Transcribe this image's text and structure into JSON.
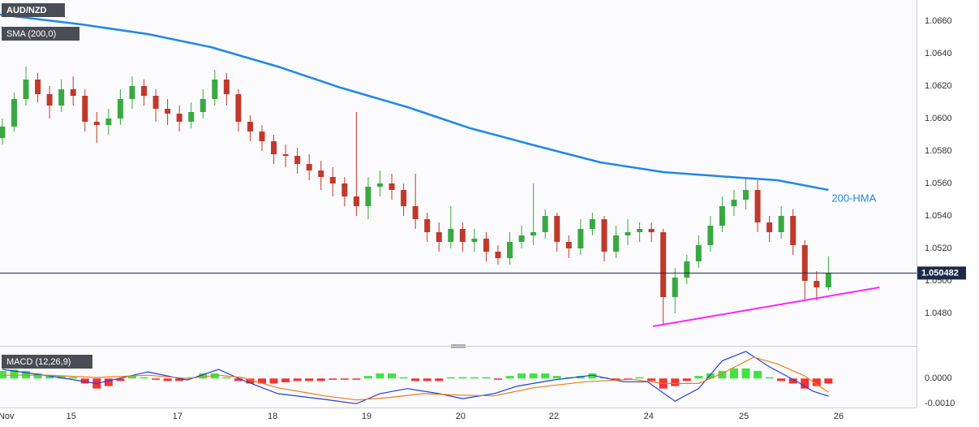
{
  "chart_data": [
    {
      "type": "candlestick",
      "title": "AUD/NZD",
      "indicator": "SMA (200,0)",
      "up_color": "#3aa841",
      "down_color": "#c0392b",
      "grid": true,
      "x": [
        0,
        3,
        6,
        9,
        12,
        15,
        18,
        21,
        24,
        27,
        30,
        33,
        36,
        39,
        42,
        45,
        48,
        51,
        54,
        57,
        60,
        63,
        66,
        69,
        72,
        75,
        78,
        81,
        84,
        87,
        90,
        93,
        96,
        99,
        102,
        105,
        108,
        111,
        114,
        117,
        120,
        123,
        126,
        129,
        132,
        135,
        138,
        141,
        144,
        147,
        150,
        153,
        156,
        159,
        162,
        165,
        168,
        171,
        174,
        177,
        180,
        183,
        186,
        189,
        192,
        195,
        198,
        201,
        204,
        207,
        210
      ],
      "open": [
        1.0588,
        1.0595,
        1.0612,
        1.0624,
        1.0615,
        1.0608,
        1.0618,
        1.0614,
        1.0598,
        1.0596,
        1.06,
        1.0612,
        1.062,
        1.0614,
        1.0606,
        1.0603,
        1.0598,
        1.0604,
        1.0612,
        1.0624,
        1.0615,
        1.0598,
        1.0592,
        1.0586,
        1.0578,
        1.0577,
        1.0572,
        1.0568,
        1.0564,
        1.056,
        1.0552,
        1.0546,
        1.0558,
        1.056,
        1.0556,
        1.0546,
        1.0538,
        1.053,
        1.0524,
        1.0532,
        1.0524,
        1.0526,
        1.0518,
        1.0514,
        1.0524,
        1.0528,
        1.053,
        1.054,
        1.0524,
        1.052,
        1.0532,
        1.0538,
        1.0518,
        1.0528,
        1.053,
        1.0532,
        1.053,
        1.049,
        1.0502,
        1.0512,
        1.0522,
        1.0534,
        1.0546,
        1.055,
        1.0556,
        1.0536,
        1.053,
        1.054,
        1.0522,
        1.05,
        1.0496
      ],
      "high": [
        1.06,
        1.0616,
        1.0632,
        1.0628,
        1.062,
        1.0624,
        1.0626,
        1.0618,
        1.0604,
        1.0606,
        1.0618,
        1.0626,
        1.0624,
        1.0618,
        1.0612,
        1.0608,
        1.061,
        1.0618,
        1.063,
        1.0628,
        1.0618,
        1.0602,
        1.0596,
        1.059,
        1.0584,
        1.0582,
        1.0578,
        1.0574,
        1.057,
        1.0564,
        1.0604,
        1.0564,
        1.0568,
        1.0566,
        1.056,
        1.0566,
        1.0542,
        1.0536,
        1.0546,
        1.0536,
        1.0532,
        1.053,
        1.0522,
        1.053,
        1.0534,
        1.056,
        1.0544,
        1.0542,
        1.0528,
        1.0538,
        1.0542,
        1.054,
        1.0534,
        1.0538,
        1.0536,
        1.0536,
        1.0532,
        1.0508,
        1.0516,
        1.0528,
        1.054,
        1.0552,
        1.0556,
        1.0563,
        1.0562,
        1.054,
        1.0546,
        1.0544,
        1.0525,
        1.0506,
        1.0515
      ],
      "low": [
        1.0584,
        1.0592,
        1.0608,
        1.061,
        1.06,
        1.0604,
        1.0608,
        1.0592,
        1.0585,
        1.059,
        1.0596,
        1.0606,
        1.0608,
        1.0598,
        1.0596,
        1.0592,
        1.0594,
        1.06,
        1.0608,
        1.0608,
        1.0592,
        1.0586,
        1.058,
        1.0572,
        1.057,
        1.0566,
        1.0562,
        1.0556,
        1.0552,
        1.0546,
        1.054,
        1.0538,
        1.0552,
        1.055,
        1.054,
        1.0532,
        1.0524,
        1.0518,
        1.052,
        1.0518,
        1.0518,
        1.0512,
        1.051,
        1.051,
        1.052,
        1.0522,
        1.0526,
        1.0518,
        1.0514,
        1.0516,
        1.0528,
        1.0512,
        1.0514,
        1.0522,
        1.0524,
        1.0524,
        1.0473,
        1.048,
        1.0498,
        1.0508,
        1.0518,
        1.053,
        1.054,
        1.0544,
        1.053,
        1.0524,
        1.0526,
        1.0516,
        1.0488,
        1.0488,
        1.0494
      ],
      "close": [
        1.0595,
        1.0612,
        1.0624,
        1.0615,
        1.0608,
        1.0618,
        1.0614,
        1.0598,
        1.0596,
        1.06,
        1.0612,
        1.062,
        1.0614,
        1.0606,
        1.0603,
        1.0598,
        1.0604,
        1.0612,
        1.0624,
        1.0615,
        1.0598,
        1.0592,
        1.0586,
        1.0578,
        1.0577,
        1.0572,
        1.0568,
        1.0564,
        1.056,
        1.0552,
        1.0546,
        1.0558,
        1.056,
        1.0556,
        1.0546,
        1.0538,
        1.053,
        1.0524,
        1.0532,
        1.0524,
        1.0526,
        1.0518,
        1.0514,
        1.0524,
        1.0528,
        1.053,
        1.054,
        1.0524,
        1.052,
        1.0532,
        1.0538,
        1.0518,
        1.0528,
        1.053,
        1.0532,
        1.053,
        1.049,
        1.0502,
        1.0512,
        1.0522,
        1.0534,
        1.0546,
        1.055,
        1.0556,
        1.0536,
        1.053,
        1.054,
        1.0522,
        1.05,
        1.0496,
        1.0505
      ],
      "lines": [
        {
          "name": "200-HMA",
          "color": "#1e88e5",
          "x": [
            -0.6,
            20,
            37,
            53,
            70,
            86,
            103,
            119,
            136,
            152,
            168,
            185,
            197,
            210
          ],
          "values": [
            1.0664,
            1.0658,
            1.0652,
            1.0644,
            1.0632,
            1.0619,
            1.0607,
            1.0594,
            1.0583,
            1.0573,
            1.0567,
            1.0564,
            1.0562,
            1.0556
          ]
        }
      ],
      "trendline": {
        "color": "#ff22ff",
        "x": [
          165.4,
          223
        ],
        "values": [
          1.0472,
          1.0496
        ]
      },
      "current_price": 1.050482,
      "xlim": [
        -0.6,
        232.4
      ],
      "ylim": [
        1.0462,
        1.0673
      ],
      "yticks": [
        {
          "value": 1.048,
          "label": "1.0480"
        },
        {
          "value": 1.05,
          "label": "1.0500"
        },
        {
          "value": 1.052,
          "label": "1.0520"
        },
        {
          "value": 1.054,
          "label": "1.0540"
        },
        {
          "value": 1.056,
          "label": "1.0560"
        },
        {
          "value": 1.058,
          "label": "1.0580"
        },
        {
          "value": 1.06,
          "label": "1.0600"
        },
        {
          "value": 1.062,
          "label": "1.0620"
        },
        {
          "value": 1.064,
          "label": "1.0640"
        },
        {
          "value": 1.066,
          "label": "1.0660"
        }
      ],
      "xticks": [
        {
          "value": 1.0,
          "label": "Nov"
        },
        {
          "value": 17.5,
          "label": "15"
        },
        {
          "value": 44.5,
          "label": "17"
        },
        {
          "value": 68.7,
          "label": "18"
        },
        {
          "value": 92.6,
          "label": "19"
        },
        {
          "value": 116.5,
          "label": "20"
        },
        {
          "value": 140.2,
          "label": "22"
        },
        {
          "value": 164.3,
          "label": "24"
        },
        {
          "value": 188.5,
          "label": "25"
        },
        {
          "value": 212.6,
          "label": "26"
        }
      ]
    },
    {
      "type": "macd",
      "title": "MACD (12,26,9)",
      "up_color": "#22dd22",
      "down_color": "#ee1111",
      "grid": true,
      "x": [
        0,
        3,
        6,
        9,
        12,
        15,
        18,
        21,
        24,
        27,
        30,
        33,
        36,
        39,
        42,
        45,
        48,
        51,
        54,
        57,
        60,
        63,
        66,
        69,
        72,
        75,
        78,
        81,
        84,
        87,
        90,
        93,
        96,
        99,
        102,
        105,
        108,
        111,
        114,
        117,
        120,
        123,
        126,
        129,
        132,
        135,
        138,
        141,
        144,
        147,
        150,
        153,
        156,
        159,
        162,
        165,
        168,
        171,
        174,
        177,
        180,
        183,
        186,
        189,
        192,
        195,
        198,
        201,
        204,
        207,
        210
      ],
      "histogram": [
        0.0003,
        0.00035,
        0.0003,
        0.0002,
        0.0001,
        0.0001,
        5e-05,
        -0.0002,
        -0.0004,
        -0.0003,
        -0.0001,
        0.0001,
        5e-05,
        -5e-05,
        -0.0001,
        -0.0001,
        5e-05,
        0.0002,
        0.0002,
        5e-05,
        -0.0001,
        -0.0002,
        -0.0002,
        -0.0002,
        -0.00015,
        -0.0001,
        -0.0001,
        -0.0001,
        -5e-05,
        -5e-05,
        -5e-05,
        0.0001,
        0.0002,
        0.0002,
        5e-05,
        -0.0001,
        -0.0001,
        -0.0001,
        5e-05,
        5e-05,
        5e-05,
        5e-05,
        -5e-05,
        0.0001,
        0.0002,
        0.0002,
        0.0002,
        0.0001,
        5e-05,
        0.0001,
        0.0002,
        5e-05,
        -5e-05,
        -5e-05,
        5e-05,
        -0.0001,
        -0.0004,
        -0.0003,
        -0.0001,
        0.0001,
        0.0002,
        0.0003,
        0.0004,
        0.0004,
        0.0003,
        5e-05,
        -0.0001,
        -0.0002,
        -0.0004,
        -0.0003,
        -0.0002
      ],
      "lines": [
        {
          "color": "#1f3fdd",
          "x": [
            0,
            12,
            24,
            37,
            47,
            55,
            61,
            70,
            82,
            90,
            96,
            103,
            111,
            117,
            125,
            131,
            140,
            150,
            158,
            164,
            171,
            177,
            183,
            189,
            195,
            202,
            206,
            210
          ],
          "values": [
            0.00036,
            0.0001,
            -0.0002,
            0.00026,
            -6e-05,
            0.00036,
            -6e-05,
            -0.0006,
            -0.00083,
            -0.001,
            -0.0006,
            -0.0004,
            -0.0006,
            -0.0008,
            -0.0006,
            -0.0003,
            -6e-05,
            0.00013,
            -0.00013,
            -0.00013,
            -0.0009,
            -0.0004,
            0.0007,
            0.00107,
            0.00046,
            -0.00012,
            -0.0005,
            -0.0007
          ]
        },
        {
          "color": "#f07a1a",
          "x": [
            0,
            12,
            24,
            37,
            47,
            55,
            61,
            70,
            82,
            90,
            98,
            107,
            117,
            125,
            135,
            148,
            160,
            168,
            177,
            183,
            191,
            197,
            204,
            210
          ],
          "values": [
            0.00013,
            0.00013,
            4e-05,
            0.00013,
            0.0,
            0.00013,
            4e-05,
            -0.00037,
            -0.00069,
            -0.00085,
            -0.00076,
            -0.0006,
            -0.00066,
            -0.00069,
            -0.00037,
            -0.00013,
            -3e-05,
            -0.0002,
            -0.0002,
            0.0002,
            0.00084,
            0.00058,
            0.0001,
            -0.00055
          ]
        }
      ],
      "xlim": [
        -0.6,
        232.4
      ],
      "ylim": [
        -0.00115,
        0.0011
      ],
      "yticks": [
        {
          "value": 0,
          "label": "0.0000"
        },
        {
          "value": -0.001,
          "label": "-0.0010"
        }
      ]
    }
  ]
}
